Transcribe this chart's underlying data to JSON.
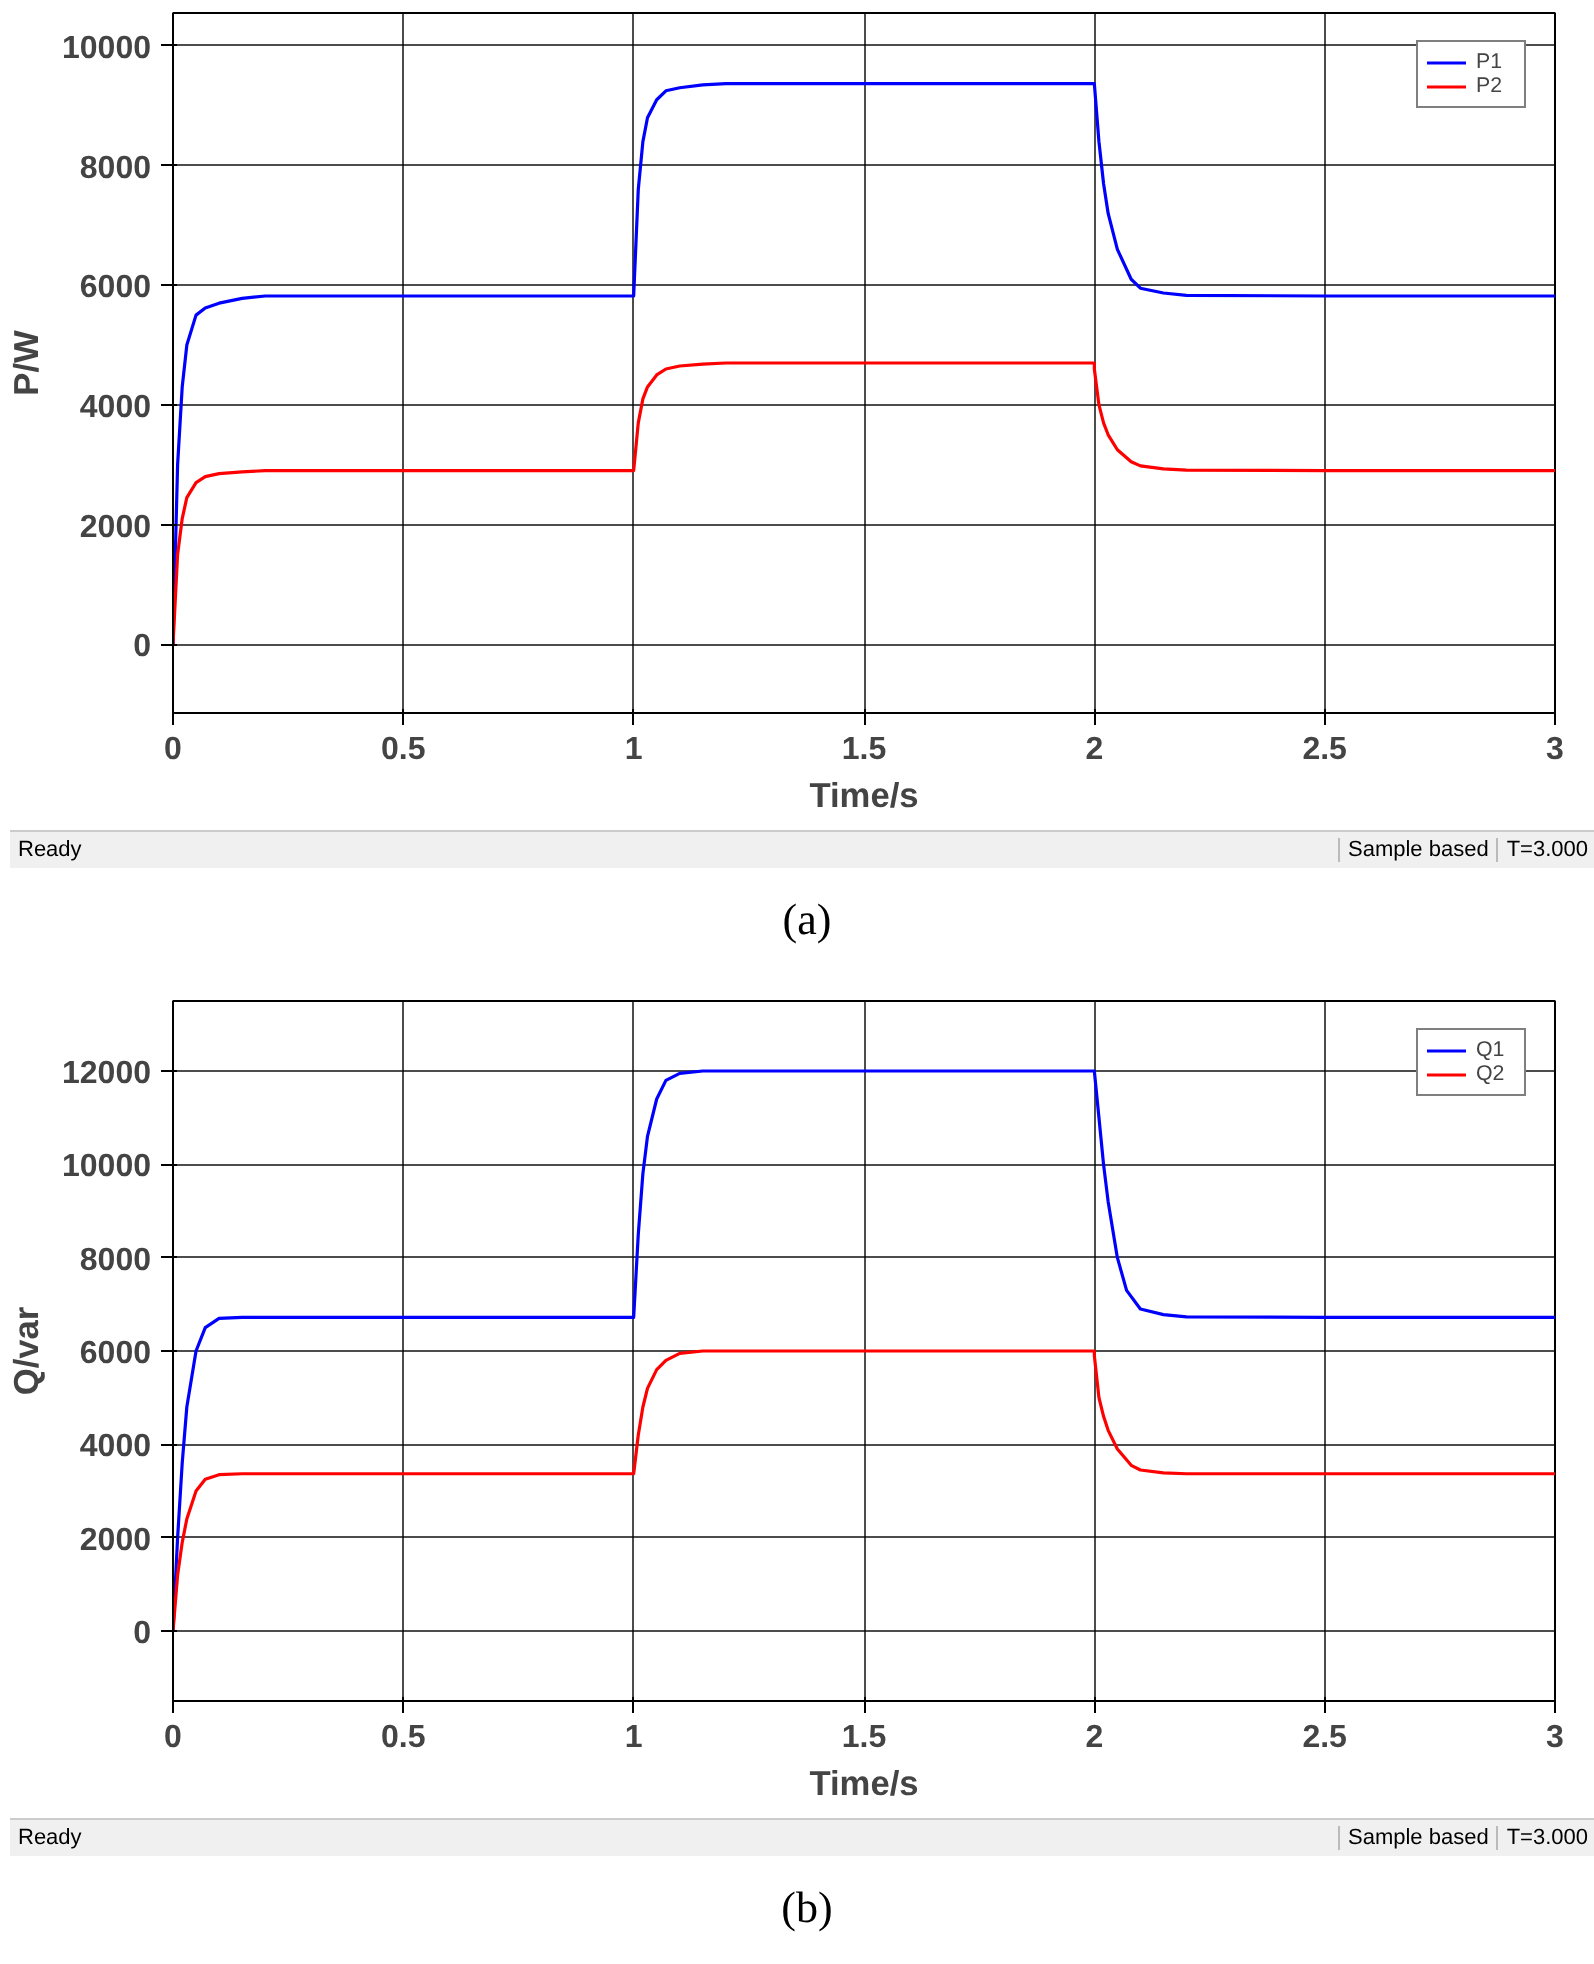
{
  "chart_data": [
    {
      "type": "line",
      "xlabel": "Time/s",
      "ylabel": "P/W",
      "xlim": [
        0,
        3
      ],
      "ylim": [
        -1150,
        10550
      ],
      "xticks": [
        0,
        0.5,
        1,
        1.5,
        2,
        2.5,
        3
      ],
      "yticks": [
        0,
        2000,
        4000,
        6000,
        8000,
        10000
      ],
      "grid": true,
      "legend": "top right",
      "series": [
        {
          "name": "P1",
          "color": "#0000ff",
          "x": [
            0,
            0.01,
            0.02,
            0.03,
            0.05,
            0.07,
            0.1,
            0.15,
            0.2,
            0.5,
            1.0,
            1.0,
            1.01,
            1.02,
            1.03,
            1.05,
            1.07,
            1.1,
            1.15,
            1.2,
            1.5,
            2.0,
            2.01,
            2.02,
            2.03,
            2.05,
            2.08,
            2.1,
            2.15,
            2.2,
            2.5,
            3.0
          ],
          "values": [
            0,
            3000,
            4300,
            5000,
            5500,
            5620,
            5700,
            5780,
            5820,
            5820,
            5820,
            5820,
            7600,
            8400,
            8800,
            9100,
            9250,
            9300,
            9350,
            9370,
            9370,
            9370,
            8400,
            7700,
            7200,
            6600,
            6100,
            5950,
            5870,
            5830,
            5820,
            5820
          ]
        },
        {
          "name": "P2",
          "color": "#ff0000",
          "x": [
            0,
            0.01,
            0.02,
            0.03,
            0.05,
            0.07,
            0.1,
            0.15,
            0.2,
            0.5,
            1.0,
            1.0,
            1.01,
            1.02,
            1.03,
            1.05,
            1.07,
            1.1,
            1.15,
            1.2,
            1.5,
            2.0,
            2.0,
            2.01,
            2.02,
            2.03,
            2.05,
            2.08,
            2.1,
            2.15,
            2.2,
            2.5,
            3.0
          ],
          "values": [
            0,
            1500,
            2100,
            2450,
            2700,
            2800,
            2850,
            2880,
            2900,
            2900,
            2900,
            2900,
            3700,
            4100,
            4300,
            4500,
            4600,
            4650,
            4680,
            4700,
            4700,
            4700,
            4600,
            4000,
            3700,
            3500,
            3250,
            3050,
            2980,
            2930,
            2910,
            2900,
            2900
          ]
        }
      ],
      "annotations": [
        "Ready",
        "Sample based",
        "T=3.000",
        "(a)"
      ]
    },
    {
      "type": "line",
      "xlabel": "Time/s",
      "ylabel": "Q/var",
      "xlim": [
        0,
        3
      ],
      "ylim": [
        -1500,
        13500
      ],
      "xticks": [
        0,
        0.5,
        1,
        1.5,
        2,
        2.5,
        3
      ],
      "yticks": [
        0,
        2000,
        4000,
        6000,
        8000,
        10000,
        12000
      ],
      "grid": true,
      "legend": "top right",
      "series": [
        {
          "name": "Q1",
          "color": "#0000ff",
          "x": [
            0,
            0.01,
            0.02,
            0.03,
            0.05,
            0.07,
            0.1,
            0.15,
            0.2,
            0.5,
            1.0,
            1.0,
            1.01,
            1.02,
            1.03,
            1.05,
            1.07,
            1.1,
            1.15,
            1.2,
            1.5,
            2.0,
            2.01,
            2.02,
            2.03,
            2.05,
            2.07,
            2.1,
            2.15,
            2.2,
            2.5,
            3.0
          ],
          "values": [
            0,
            2000,
            3600,
            4800,
            6000,
            6500,
            6700,
            6720,
            6720,
            6720,
            6720,
            6720,
            8500,
            9800,
            10600,
            11400,
            11800,
            11950,
            12000,
            12000,
            12000,
            12000,
            11000,
            10000,
            9200,
            8000,
            7300,
            6900,
            6780,
            6730,
            6720,
            6720
          ]
        },
        {
          "name": "Q2",
          "color": "#ff0000",
          "x": [
            0,
            0.01,
            0.02,
            0.03,
            0.05,
            0.07,
            0.1,
            0.15,
            0.2,
            0.5,
            1.0,
            1.0,
            1.01,
            1.02,
            1.03,
            1.05,
            1.07,
            1.1,
            1.15,
            1.2,
            1.5,
            2.0,
            2.0,
            2.01,
            2.02,
            2.03,
            2.05,
            2.08,
            2.1,
            2.15,
            2.2,
            2.5,
            3.0
          ],
          "values": [
            0,
            1200,
            1900,
            2400,
            3000,
            3250,
            3350,
            3370,
            3370,
            3370,
            3370,
            3370,
            4200,
            4800,
            5200,
            5600,
            5800,
            5950,
            6000,
            6000,
            6000,
            6000,
            5900,
            5000,
            4600,
            4300,
            3900,
            3550,
            3450,
            3390,
            3370,
            3370,
            3370
          ]
        }
      ],
      "annotations": [
        "Ready",
        "Sample based",
        "T=3.000",
        "(b)"
      ]
    }
  ]
}
